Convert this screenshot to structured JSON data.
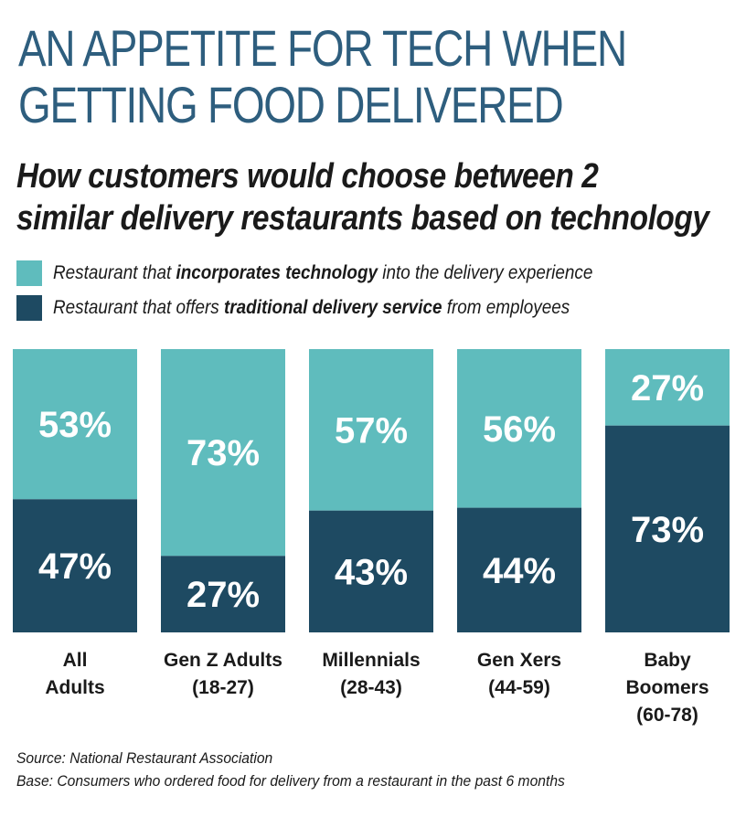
{
  "header": {
    "title_line1": "AN APPETITE FOR TECH WHEN",
    "title_line2": "GETTING FOOD DELIVERED",
    "subtitle_line1": "How customers would choose between 2",
    "subtitle_line2": "similar delivery restaurants based on technology"
  },
  "legend": {
    "tech": {
      "pre": "Restaurant that ",
      "bold": "incorporates technology",
      "post": " into the delivery experience"
    },
    "traditional": {
      "pre": "Restaurant that offers ",
      "bold": "traditional delivery service",
      "post": " from employees"
    }
  },
  "colors": {
    "tech": "#5fbcbd",
    "traditional": "#1e4a62"
  },
  "chart_data": {
    "type": "bar",
    "stacked": true,
    "categories": [
      [
        "All",
        "Adults"
      ],
      [
        "Gen Z Adults",
        "(18-27)"
      ],
      [
        "Millennials",
        "(28-43)"
      ],
      [
        "Gen Xers",
        "(44-59)"
      ],
      [
        "Baby",
        "Boomers",
        "(60-78)"
      ]
    ],
    "series": [
      {
        "name": "Restaurant that incorporates technology into the delivery experience",
        "values": [
          53,
          73,
          57,
          56,
          27
        ]
      },
      {
        "name": "Restaurant that offers traditional delivery service from employees",
        "values": [
          47,
          27,
          43,
          44,
          73
        ]
      }
    ],
    "ylim": [
      0,
      100
    ],
    "legend": "top-left",
    "grid": false
  },
  "footer": {
    "source": "Source: National Restaurant Association",
    "base": "Base: Consumers who ordered food for delivery from a restaurant in the past 6 months"
  }
}
